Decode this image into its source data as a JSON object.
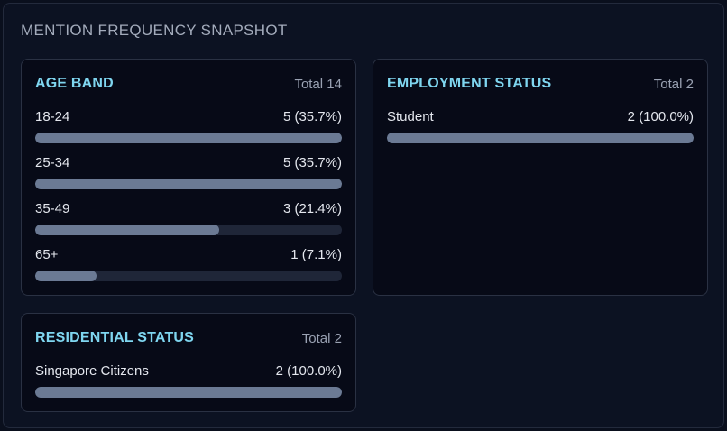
{
  "panel": {
    "title": "MENTION FREQUENCY SNAPSHOT"
  },
  "colors": {
    "accent": "#7fd6f0",
    "bar_fill": "#6b7a94",
    "bar_track": "#1f2638"
  },
  "cards": {
    "age_band": {
      "title": "AGE BAND",
      "total": "Total 14",
      "rows": [
        {
          "label": "18-24",
          "value": "5 (35.7%)",
          "width": "100%"
        },
        {
          "label": "25-34",
          "value": "5 (35.7%)",
          "width": "100%"
        },
        {
          "label": "35-49",
          "value": "3 (21.4%)",
          "width": "60%"
        },
        {
          "label": "65+",
          "value": "1 (7.1%)",
          "width": "20%"
        }
      ]
    },
    "employment_status": {
      "title": "EMPLOYMENT STATUS",
      "total": "Total 2",
      "rows": [
        {
          "label": "Student",
          "value": "2 (100.0%)",
          "width": "100%"
        }
      ]
    },
    "residential_status": {
      "title": "RESIDENTIAL STATUS",
      "total": "Total 2",
      "rows": [
        {
          "label": "Singapore Citizens",
          "value": "2 (100.0%)",
          "width": "100%"
        }
      ]
    }
  }
}
